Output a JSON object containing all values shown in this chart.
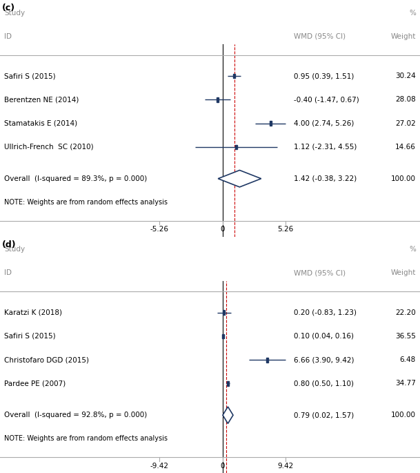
{
  "panel_c": {
    "label": "(c)",
    "studies": [
      {
        "name": "Safiri S (2015)",
        "wmd": 0.95,
        "ci_lo": 0.39,
        "ci_hi": 1.51,
        "ci_str": "0.95 (0.39, 1.51)",
        "weight": "30.24"
      },
      {
        "name": "Berentzen NE (2014)",
        "wmd": -0.4,
        "ci_lo": -1.47,
        "ci_hi": 0.67,
        "ci_str": "-0.40 (-1.47, 0.67)",
        "weight": "28.08"
      },
      {
        "name": "Stamatakis E (2014)",
        "wmd": 4.0,
        "ci_lo": 2.74,
        "ci_hi": 5.26,
        "ci_str": "4.00 (2.74, 5.26)",
        "weight": "27.02"
      },
      {
        "name": "Ullrich-French  SC (2010)",
        "wmd": 1.12,
        "ci_lo": -2.31,
        "ci_hi": 4.55,
        "ci_str": "1.12 (-2.31, 4.55)",
        "weight": "14.66"
      }
    ],
    "overall": {
      "name": "Overall  (I-squared = 89.3%, p = 0.000)",
      "wmd": 1.42,
      "ci_lo": -0.38,
      "ci_hi": 3.22,
      "ci_str": "1.42 (-0.38, 3.22)",
      "weight": "100.00"
    },
    "note": "NOTE: Weights are from random effects analysis",
    "xmin": -5.26,
    "xmax": 5.26,
    "xticks": [
      -5.26,
      0,
      5.26
    ],
    "ref_line": 1.0,
    "wmd_label": "WMD (95% CI)",
    "weight_label": "Weight"
  },
  "panel_d": {
    "label": "(d)",
    "studies": [
      {
        "name": "Karatzi K (2018)",
        "wmd": 0.2,
        "ci_lo": -0.83,
        "ci_hi": 1.23,
        "ci_str": "0.20 (-0.83, 1.23)",
        "weight": "22.20"
      },
      {
        "name": "Safiri S (2015)",
        "wmd": 0.1,
        "ci_lo": 0.04,
        "ci_hi": 0.16,
        "ci_str": "0.10 (0.04, 0.16)",
        "weight": "36.55"
      },
      {
        "name": "Christofaro DGD (2015)",
        "wmd": 6.66,
        "ci_lo": 3.9,
        "ci_hi": 9.42,
        "ci_str": "6.66 (3.90, 9.42)",
        "weight": "6.48"
      },
      {
        "name": "Pardee PE (2007)",
        "wmd": 0.8,
        "ci_lo": 0.5,
        "ci_hi": 1.1,
        "ci_str": "0.80 (0.50, 1.10)",
        "weight": "34.77"
      }
    ],
    "overall": {
      "name": "Overall  (I-squared = 92.8%, p = 0.000)",
      "wmd": 0.79,
      "ci_lo": 0.02,
      "ci_hi": 1.57,
      "ci_str": "0.79 (0.02, 1.57)",
      "weight": "100.00"
    },
    "note": "NOTE: Weights are from random effects analysis",
    "xmin": -9.42,
    "xmax": 9.42,
    "xticks": [
      -9.42,
      0,
      9.42
    ],
    "ref_line": 0.5,
    "wmd_label": "WMD (95% CI)",
    "weight_label": "Weight"
  },
  "study_label": "Study",
  "id_label": "ID",
  "pct_label": "%",
  "square_color": "#1f3864",
  "diamond_color": "#1f3864",
  "line_color": "#1f3864",
  "dashed_color": "#cc0000",
  "axis_color": "#aaaaaa",
  "text_color": "#000000",
  "header_color": "#888888",
  "fontsize": 7.5,
  "note_fontsize": 7.0
}
